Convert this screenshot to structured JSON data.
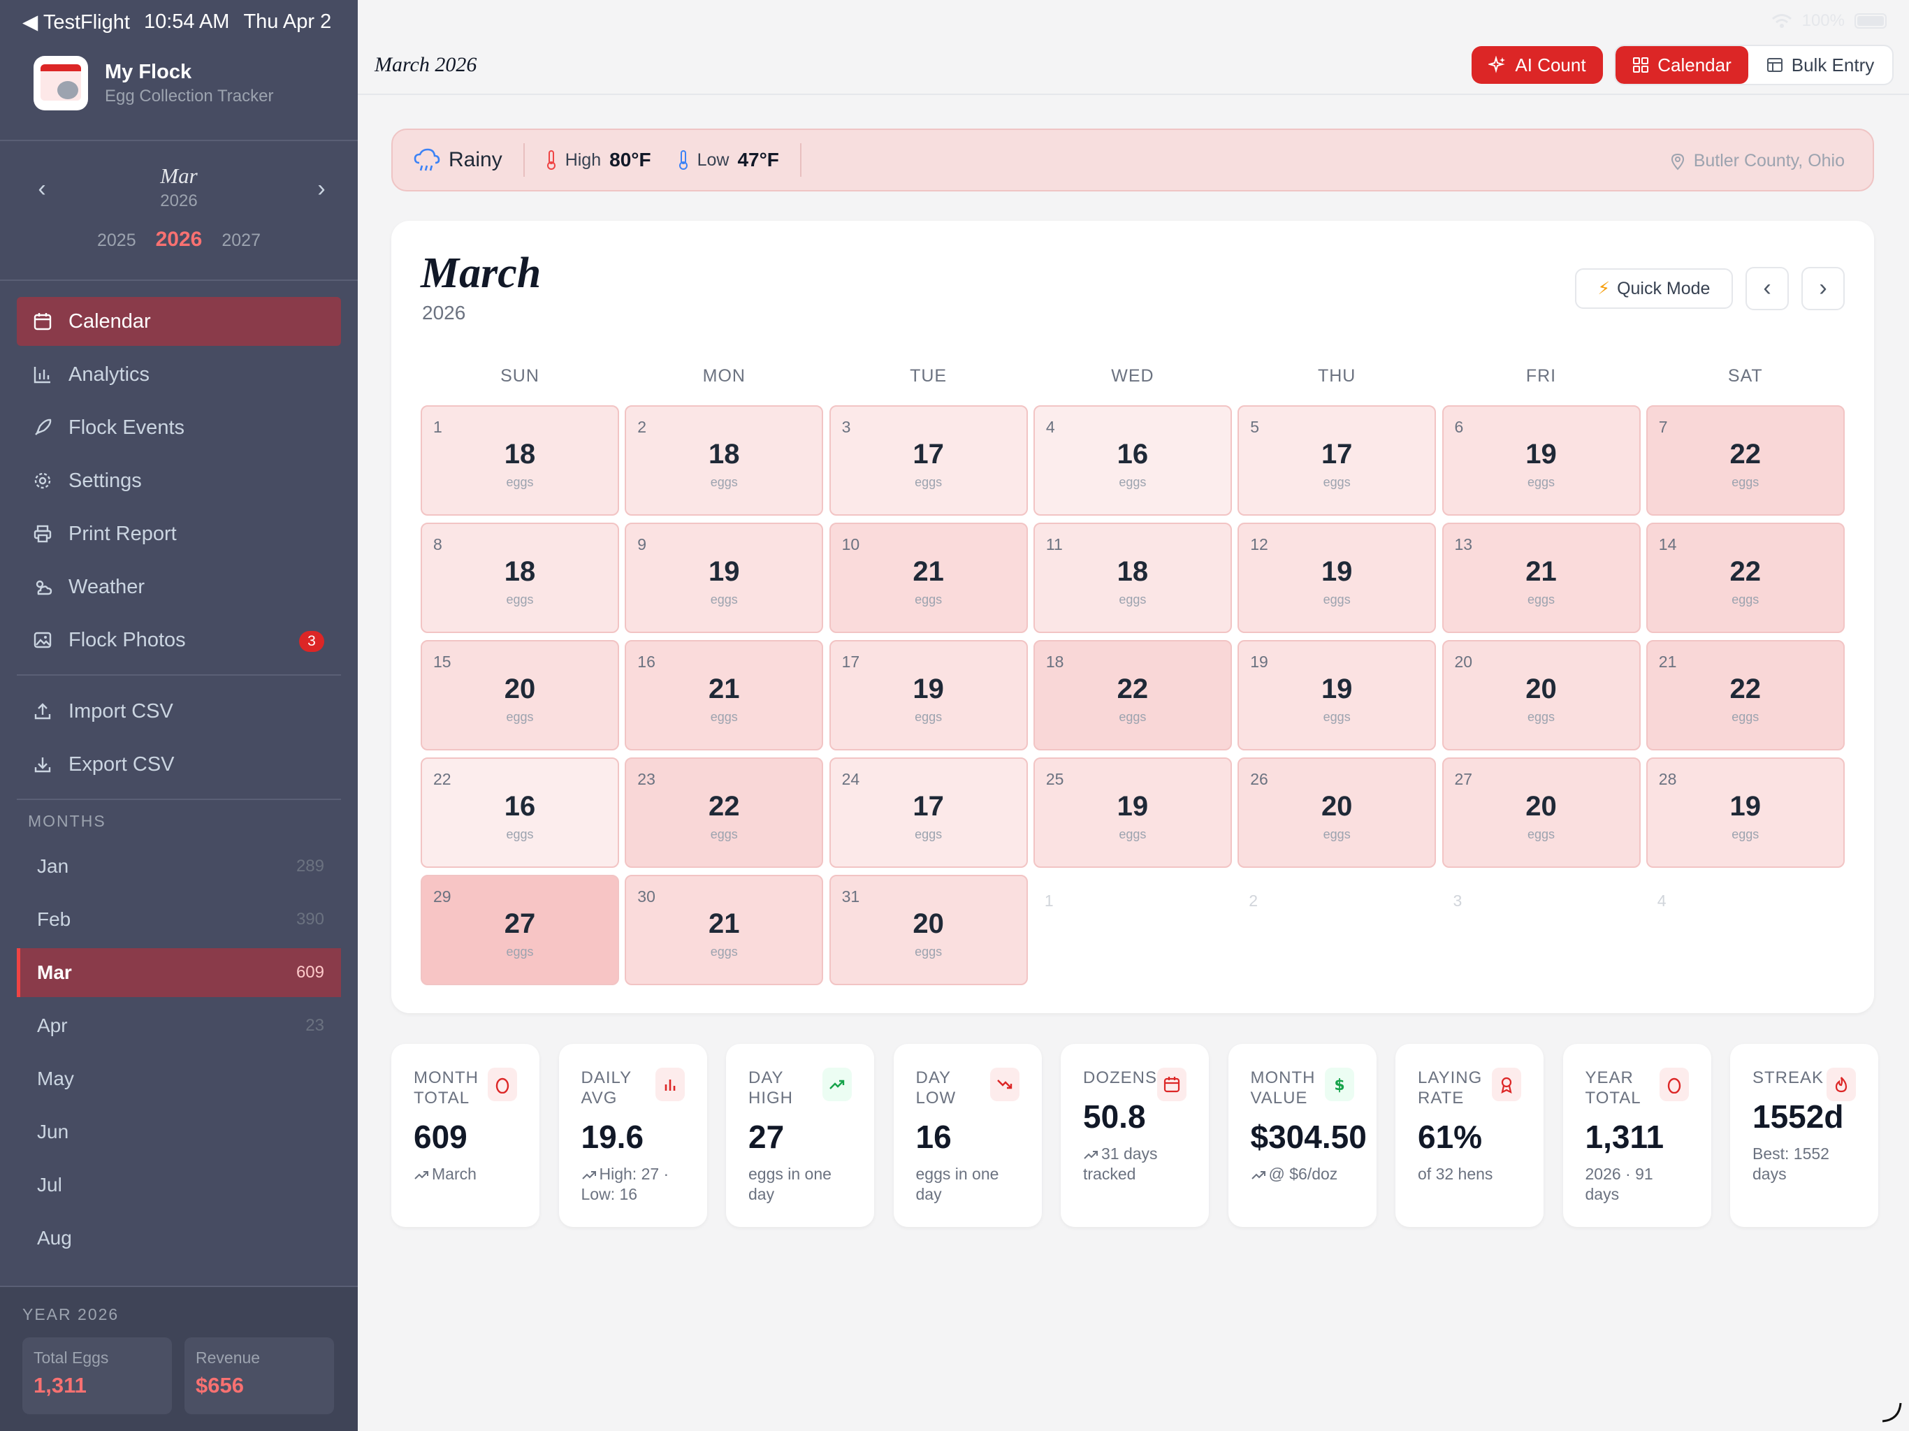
{
  "status_bar": {
    "back_app": "◀ TestFlight",
    "time": "10:54 AM",
    "date": "Thu Apr 2",
    "battery": "100%"
  },
  "sidebar": {
    "brand_title": "My Flock",
    "brand_subtitle": "Egg Collection Tracker",
    "month_nav": {
      "month": "Mar",
      "year": "2026"
    },
    "years": [
      "2025",
      "2026",
      "2027"
    ],
    "nav": [
      {
        "label": "Calendar",
        "icon": "calendar-icon"
      },
      {
        "label": "Analytics",
        "icon": "bar-chart-icon"
      },
      {
        "label": "Flock Events",
        "icon": "rocket-icon"
      },
      {
        "label": "Settings",
        "icon": "gear-icon"
      },
      {
        "label": "Print Report",
        "icon": "printer-icon"
      },
      {
        "label": "Weather",
        "icon": "weather-icon"
      },
      {
        "label": "Flock Photos",
        "icon": "image-icon",
        "badge": "3"
      },
      {
        "label": "Import CSV",
        "icon": "upload-icon"
      },
      {
        "label": "Export CSV",
        "icon": "download-icon"
      }
    ],
    "months_heading": "MONTHS",
    "months": [
      {
        "name": "Jan",
        "count": "289"
      },
      {
        "name": "Feb",
        "count": "390"
      },
      {
        "name": "Mar",
        "count": "609"
      },
      {
        "name": "Apr",
        "count": "23"
      },
      {
        "name": "May",
        "count": ""
      },
      {
        "name": "Jun",
        "count": ""
      },
      {
        "name": "Jul",
        "count": ""
      },
      {
        "name": "Aug",
        "count": ""
      }
    ],
    "year_summary": {
      "heading": "YEAR 2026",
      "total_eggs_label": "Total Eggs",
      "total_eggs": "1,311",
      "revenue_label": "Revenue",
      "revenue": "$656"
    }
  },
  "header": {
    "title": "March 2026",
    "ai_count": "AI Count",
    "view_calendar": "Calendar",
    "view_bulk": "Bulk Entry"
  },
  "weather": {
    "condition": "Rainy",
    "high_label": "High",
    "high": "80°F",
    "low_label": "Low",
    "low": "47°F",
    "location": "Butler County, Ohio"
  },
  "calendar": {
    "month": "March",
    "year": "2026",
    "quick_mode": "Quick Mode",
    "weekdays": [
      "SUN",
      "MON",
      "TUE",
      "WED",
      "THU",
      "FRI",
      "SAT"
    ],
    "unit": "eggs",
    "days": [
      {
        "d": "1",
        "eggs": "18"
      },
      {
        "d": "2",
        "eggs": "18"
      },
      {
        "d": "3",
        "eggs": "17"
      },
      {
        "d": "4",
        "eggs": "16"
      },
      {
        "d": "5",
        "eggs": "17"
      },
      {
        "d": "6",
        "eggs": "19"
      },
      {
        "d": "7",
        "eggs": "22"
      },
      {
        "d": "8",
        "eggs": "18"
      },
      {
        "d": "9",
        "eggs": "19"
      },
      {
        "d": "10",
        "eggs": "21"
      },
      {
        "d": "11",
        "eggs": "18"
      },
      {
        "d": "12",
        "eggs": "19"
      },
      {
        "d": "13",
        "eggs": "21"
      },
      {
        "d": "14",
        "eggs": "22"
      },
      {
        "d": "15",
        "eggs": "20"
      },
      {
        "d": "16",
        "eggs": "21"
      },
      {
        "d": "17",
        "eggs": "19"
      },
      {
        "d": "18",
        "eggs": "22"
      },
      {
        "d": "19",
        "eggs": "19"
      },
      {
        "d": "20",
        "eggs": "20"
      },
      {
        "d": "21",
        "eggs": "22"
      },
      {
        "d": "22",
        "eggs": "16"
      },
      {
        "d": "23",
        "eggs": "22"
      },
      {
        "d": "24",
        "eggs": "17"
      },
      {
        "d": "25",
        "eggs": "19"
      },
      {
        "d": "26",
        "eggs": "20"
      },
      {
        "d": "27",
        "eggs": "20"
      },
      {
        "d": "28",
        "eggs": "19"
      },
      {
        "d": "29",
        "eggs": "27"
      },
      {
        "d": "30",
        "eggs": "21"
      },
      {
        "d": "31",
        "eggs": "20"
      }
    ],
    "trailing_days": [
      "1",
      "2",
      "3",
      "4"
    ]
  },
  "stats": [
    {
      "label": "MONTH TOTAL",
      "value": "609",
      "sub": "March",
      "icon": "egg-icon",
      "trend": true,
      "color": "#dc2626"
    },
    {
      "label": "DAILY AVG",
      "value": "19.6",
      "sub": "High: 27 · Low: 16",
      "icon": "bar-chart-icon",
      "trend": true,
      "color": "#dc2626"
    },
    {
      "label": "DAY HIGH",
      "value": "27",
      "sub": "eggs in one day",
      "icon": "trend-up-icon",
      "trend": false,
      "color": "#16a34a"
    },
    {
      "label": "DAY LOW",
      "value": "16",
      "sub": "eggs in one day",
      "icon": "trend-down-icon",
      "trend": false,
      "color": "#dc2626"
    },
    {
      "label": "DOZENS",
      "value": "50.8",
      "sub": "31 days tracked",
      "icon": "calendar-icon",
      "trend": true,
      "color": "#dc2626"
    },
    {
      "label": "MONTH VALUE",
      "value": "$304.50",
      "sub": "@ $6/doz",
      "icon": "dollar-icon",
      "trend": true,
      "color": "#16a34a"
    },
    {
      "label": "LAYING RATE",
      "value": "61%",
      "sub": "of 32 hens",
      "icon": "award-icon",
      "trend": false,
      "color": "#dc2626"
    },
    {
      "label": "YEAR TOTAL",
      "value": "1,311",
      "sub": "2026 · 91 days",
      "icon": "egg-icon",
      "trend": false,
      "color": "#dc2626"
    },
    {
      "label": "STREAK",
      "value": "1552d",
      "sub": "Best: 1552 days",
      "icon": "flame-icon",
      "trend": false,
      "color": "#dc2626"
    }
  ]
}
